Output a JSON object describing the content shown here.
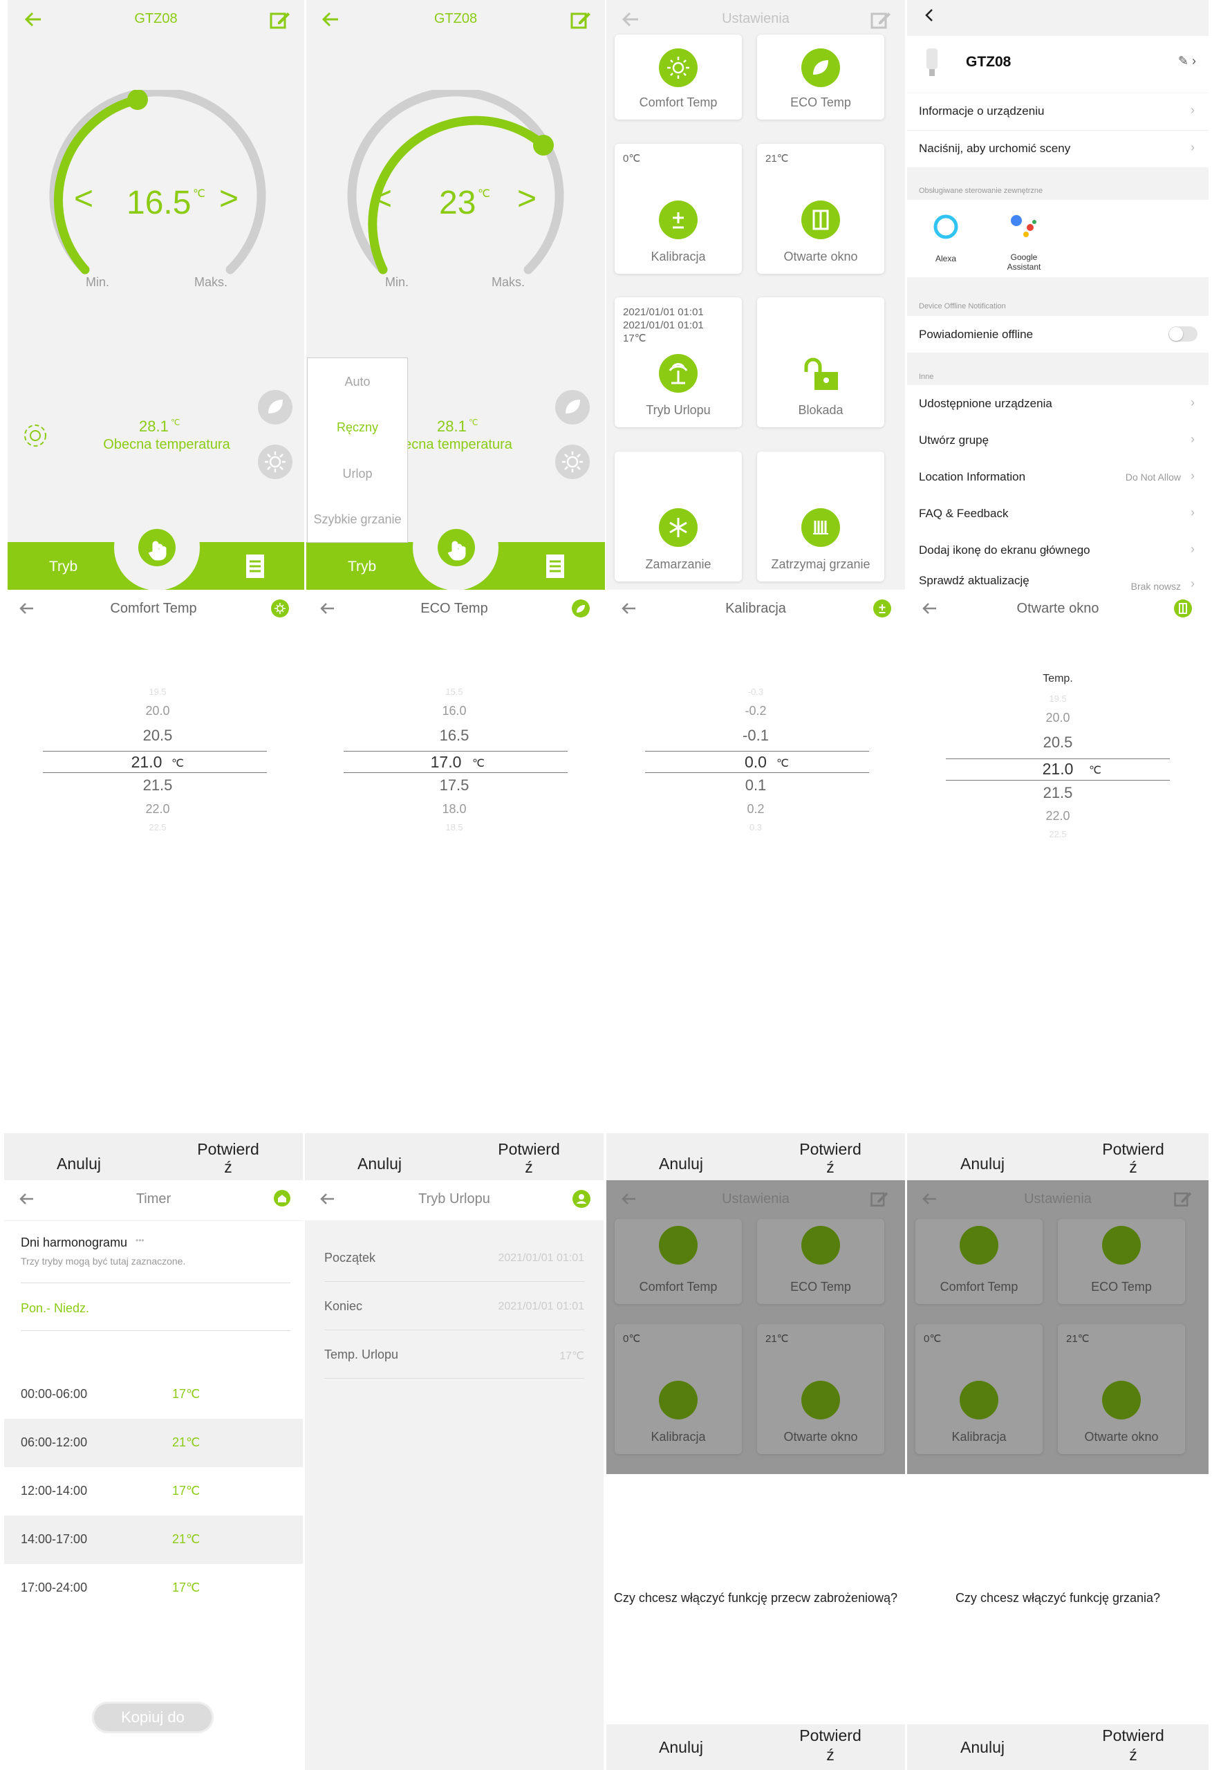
{
  "colors": {
    "accent": "#8ccb14",
    "bg_gray": "#f0f0f0",
    "overlay": "rgba(0,0,0,0.38)"
  },
  "p1": {
    "title": "GTZ08",
    "temp": "16.5",
    "unit": "℃",
    "min": "Min.",
    "max": "Maks.",
    "current": "28.1",
    "current_unit": "℃",
    "current_label": "Obecna temperatura",
    "tab_mode": "Tryb"
  },
  "p2": {
    "title": "GTZ08",
    "temp": "23",
    "unit": "℃",
    "min": "Min.",
    "max": "Maks.",
    "current": "28.1",
    "current_unit": "℃",
    "current_label": "becna temperatura",
    "tab_mode": "Tryb",
    "menu": [
      "Auto",
      "Ręczny",
      "Urlop",
      "Szybkie grzanie"
    ],
    "menu_selected": "Ręczny"
  },
  "p3": {
    "title": "Ustawienia",
    "cards": [
      {
        "label": "Comfort Temp",
        "sub": ""
      },
      {
        "label": "ECO Temp",
        "sub": ""
      },
      {
        "label": "Kalibracja",
        "sub": "0℃"
      },
      {
        "label": "Otwarte okno",
        "sub": "21℃"
      },
      {
        "label": "Tryb Urlopu",
        "sub1": "2021/01/01 01:01",
        "sub2": "2021/01/01 01:01",
        "sub3": "17℃"
      },
      {
        "label": "Blokada",
        "sub": ""
      },
      {
        "label": "Zamarzanie",
        "sub": ""
      },
      {
        "label": "Zatrzymaj grzanie",
        "sub": ""
      }
    ]
  },
  "p4": {
    "device": "GTZ08",
    "rows": [
      "Informacje o urządzeniu",
      "Naciśnij, aby urchomić sceny"
    ],
    "sect_ext": "Obsługiwane sterowanie zewnętrzne",
    "alexa": "Alexa",
    "google1": "Google",
    "google2": "Assistant",
    "sect_offline": "Device Offline Notification",
    "offline": "Powiadomienie offline",
    "sect_other": "Inne",
    "other": [
      "Udostępnione urządzenia",
      "Utwórz grupę",
      "Location Information",
      "FAQ & Feedback",
      "Dodaj ikonę do ekranu głównego",
      "Sprawdź aktualizację"
    ],
    "location_value": "Do Not Allow",
    "update_value": "Brak nowsz"
  },
  "pick1": {
    "title": "Comfort Temp",
    "values": [
      "19.5",
      "20.0",
      "20.5",
      "21.0",
      "21.5",
      "22.0",
      "22.5"
    ],
    "unit": "℃"
  },
  "pick2": {
    "title": "ECO Temp",
    "values": [
      "15.5",
      "16.0",
      "16.5",
      "17.0",
      "17.5",
      "18.0",
      "18.5"
    ],
    "unit": "℃"
  },
  "pick3": {
    "title": "Kalibracja",
    "values": [
      "-0.3",
      "-0.2",
      "-0.1",
      "0.0",
      "0.1",
      "0.2",
      "0.3"
    ],
    "unit": "℃"
  },
  "pick4": {
    "title": "Otwarte okno",
    "header": "Temp.",
    "values": [
      "19.5",
      "20.0",
      "20.5",
      "21.0",
      "21.5",
      "22.0",
      "22.5"
    ],
    "unit": "℃"
  },
  "buttons": {
    "cancel": "Anuluj",
    "confirm1": "Potwierd",
    "confirm2": "ź"
  },
  "timer": {
    "title": "Timer",
    "days": "Dni harmonogramu",
    "dots": "•••",
    "hint": "Trzy tryby mogą być tutaj zaznaczone.",
    "range": "Pon.- Niedz.",
    "slots": [
      {
        "t": "00:00-06:00",
        "v": "17℃"
      },
      {
        "t": "06:00-12:00",
        "v": "21℃"
      },
      {
        "t": "12:00-14:00",
        "v": "17℃"
      },
      {
        "t": "14:00-17:00",
        "v": "21℃"
      },
      {
        "t": "17:00-24:00",
        "v": "17℃"
      }
    ],
    "copy": "Kopiuj do"
  },
  "holiday": {
    "title": "Tryb Urlopu",
    "rows": [
      {
        "k": "Początek",
        "v": "2021/01/01 01:01"
      },
      {
        "k": "Koniec",
        "v": "2021/01/01 01:01"
      },
      {
        "k": "Temp. Urlopu",
        "v": "17℃"
      }
    ]
  },
  "dlg1": {
    "title": "Ustawienia",
    "question": "Czy chcesz włączyć funkcję przecw zabrożeniową?"
  },
  "dlg2": {
    "title": "Ustawienia",
    "question": "Czy chcesz włączyć funkcję grzania?"
  },
  "dlg_cards": [
    {
      "label": "Comfort Temp",
      "sub": ""
    },
    {
      "label": "ECO Temp",
      "sub": ""
    },
    {
      "label": "Kalibracja",
      "sub": "0℃"
    },
    {
      "label": "Otwarte okno",
      "sub": "21℃"
    }
  ]
}
